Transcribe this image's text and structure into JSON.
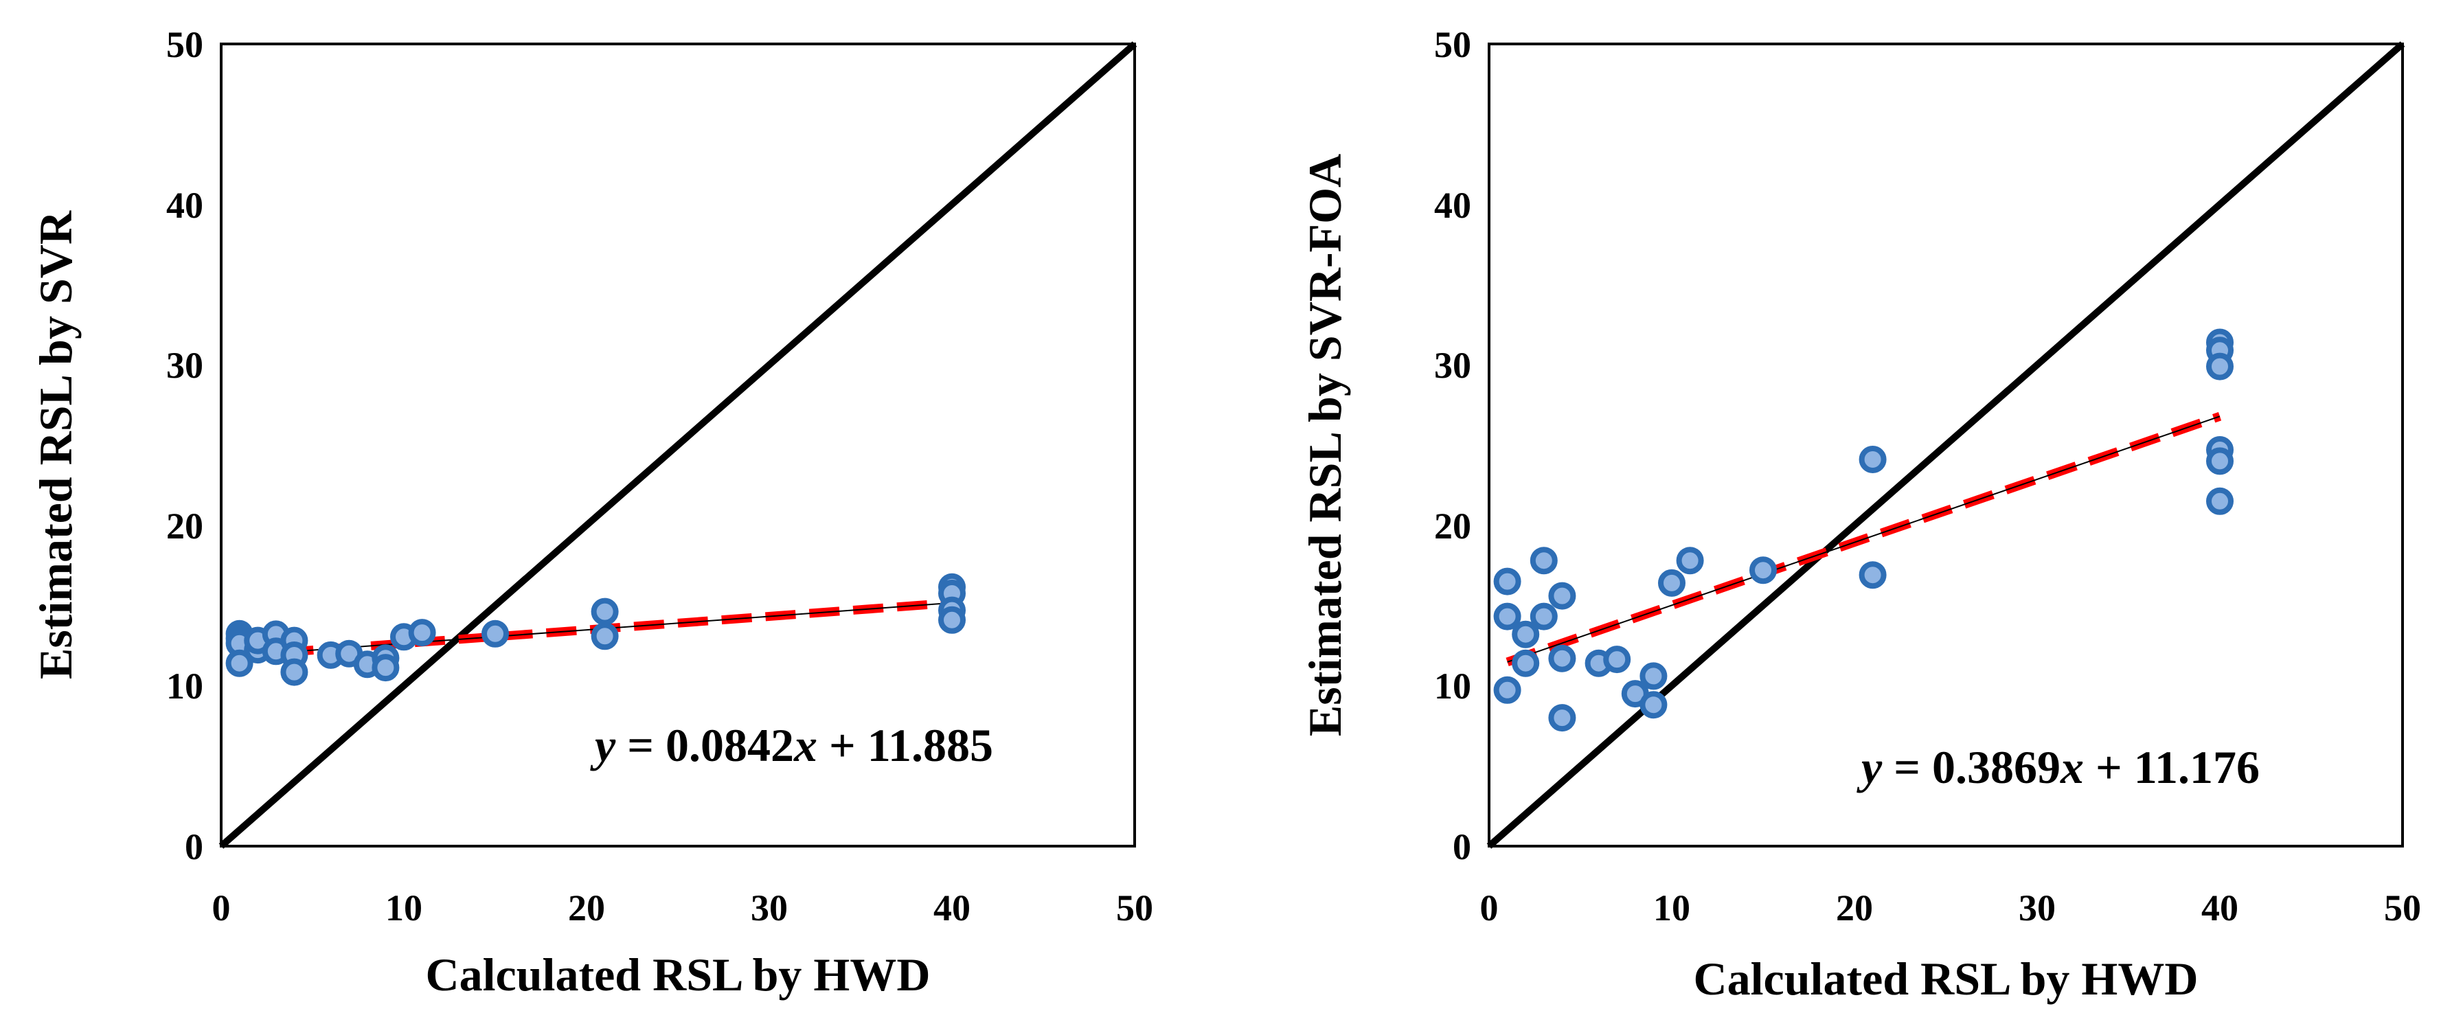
{
  "chart_data": [
    {
      "type": "scatter",
      "title": "",
      "xlabel": "Calculated RSL by HWD",
      "ylabel": "Estimated RSL by SVR",
      "xlim": [
        0,
        50
      ],
      "ylim": [
        0,
        50
      ],
      "xticks": [
        "0",
        "10",
        "20",
        "30",
        "40",
        "50"
      ],
      "yticks": [
        "0",
        "10",
        "20",
        "30",
        "40",
        "50"
      ],
      "points": {
        "x": [
          1,
          1,
          1,
          1,
          2,
          2,
          3,
          3,
          4,
          4,
          4,
          6,
          7,
          8,
          9,
          9,
          10,
          11,
          15,
          21,
          21,
          40,
          40,
          40,
          40
        ],
        "y": [
          13.1,
          12.8,
          12.5,
          11.4,
          12.2,
          12.9,
          13.3,
          12.1,
          12.9,
          11.9,
          10.9,
          11.9,
          12.0,
          11.3,
          11.7,
          11.1,
          13.0,
          13.3,
          13.2,
          14.6,
          13.1,
          16.1,
          15.7,
          14.7,
          14.1
        ]
      },
      "identity_line": {
        "x": [
          0,
          50
        ],
        "y": [
          0,
          50
        ]
      },
      "regression": {
        "slope": 0.0842,
        "intercept": 11.885,
        "x_range": [
          1,
          40
        ]
      },
      "equation": {
        "y": "y",
        "eq_mid": " = 0.0842",
        "x": "x",
        "eq_end": " + 11.885"
      }
    },
    {
      "type": "scatter",
      "title": "",
      "xlabel": "Calculated RSL by HWD",
      "ylabel": "Estimated RSL by SVR-FOA",
      "xlim": [
        0,
        50
      ],
      "ylim": [
        0,
        50
      ],
      "xticks": [
        "0",
        "10",
        "20",
        "30",
        "40",
        "50"
      ],
      "yticks": [
        "0",
        "10",
        "20",
        "30",
        "40",
        "50"
      ],
      "points": {
        "x": [
          1,
          1,
          1,
          2,
          2,
          3,
          3,
          4,
          4,
          4,
          6,
          7,
          8,
          9,
          9,
          10,
          11,
          15,
          21,
          21,
          40,
          40,
          40,
          40,
          40,
          40
        ],
        "y": [
          16.5,
          14.3,
          9.7,
          13.2,
          11.4,
          17.8,
          14.3,
          15.6,
          11.7,
          8.0,
          11.4,
          11.6,
          9.5,
          10.6,
          8.8,
          16.4,
          17.8,
          17.2,
          24.1,
          16.9,
          31.4,
          30.9,
          29.9,
          24.7,
          24.0,
          21.5
        ]
      },
      "identity_line": {
        "x": [
          0,
          50
        ],
        "y": [
          0,
          50
        ]
      },
      "regression": {
        "slope": 0.3869,
        "intercept": 11.176,
        "x_range": [
          1,
          40
        ]
      },
      "equation": {
        "y": "y",
        "eq_mid": " = 0.3869",
        "x": "x",
        "eq_end": " + 11.176"
      }
    }
  ],
  "colors": {
    "marker_fill": "#8fb4e3",
    "marker_edge": "#2e6eb5",
    "regression": "#ff0000",
    "regression_thin": "#000000",
    "identity": "#000000",
    "axes": "#000000"
  }
}
